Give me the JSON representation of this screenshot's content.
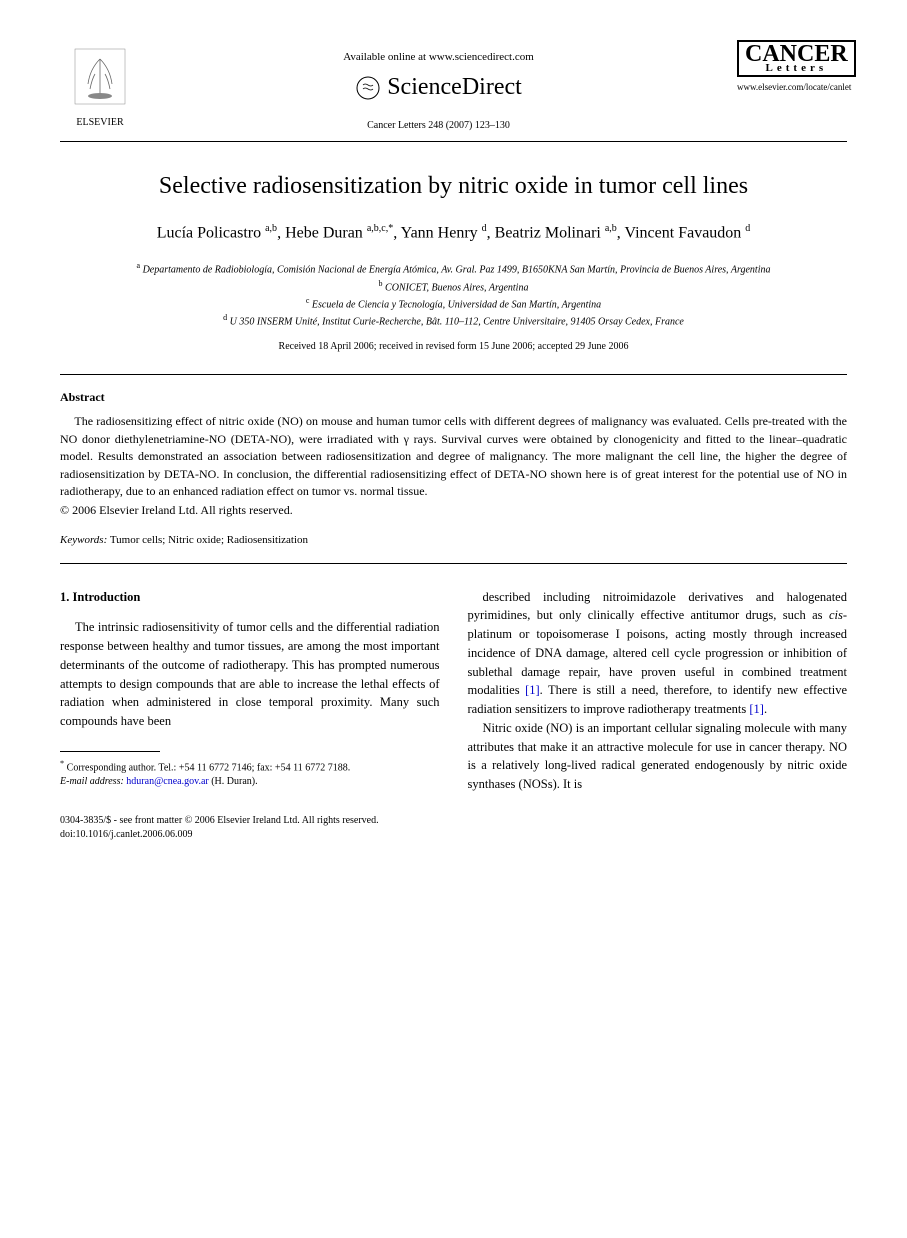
{
  "header": {
    "available_online": "Available online at www.sciencedirect.com",
    "sciencedirect": "ScienceDirect",
    "citation": "Cancer Letters 248 (2007) 123–130",
    "elsevier": "ELSEVIER",
    "cancer": "CANCER",
    "letters": "Letters",
    "journal_url": "www.elsevier.com/locate/canlet"
  },
  "title": "Selective radiosensitization by nitric oxide in tumor cell lines",
  "authors_html": "Lucía Policastro <sup>a,b</sup>, Hebe Duran <sup>a,b,c,*</sup>, Yann Henry <sup>d</sup>, Beatriz Molinari <sup>a,b</sup>, Vincent Favaudon <sup>d</sup>",
  "affiliations": {
    "a": "Departamento de Radiobiología, Comisión Nacional de Energía Atómica, Av. Gral. Paz 1499, B1650KNA San Martín, Provincia de Buenos Aires, Argentina",
    "b": "CONICET, Buenos Aires, Argentina",
    "c": "Escuela de Ciencia y Tecnología, Universidad de San Martín, Argentina",
    "d": "U 350 INSERM Unité, Institut Curie-Recherche, Bât. 110–112, Centre Universitaire, 91405 Orsay Cedex, France"
  },
  "dates": "Received 18 April 2006; received in revised form 15 June 2006; accepted 29 June 2006",
  "abstract": {
    "heading": "Abstract",
    "text": "The radiosensitizing effect of nitric oxide (NO) on mouse and human tumor cells with different degrees of malignancy was evaluated. Cells pre-treated with the NO donor diethylenetriamine-NO (DETA-NO), were irradiated with γ rays. Survival curves were obtained by clonogenicity and fitted to the linear–quadratic model. Results demonstrated an association between radiosensitization and degree of malignancy. The more malignant the cell line, the higher the degree of radiosensitization by DETA-NO. In conclusion, the differential radiosensitizing effect of DETA-NO shown here is of great interest for the potential use of NO in radiotherapy, due to an enhanced radiation effect on tumor vs. normal tissue.",
    "copyright": "© 2006 Elsevier Ireland Ltd. All rights reserved."
  },
  "keywords": {
    "label": "Keywords:",
    "text": "Tumor cells; Nitric oxide; Radiosensitization"
  },
  "intro": {
    "heading": "1. Introduction",
    "p1": "The intrinsic radiosensitivity of tumor cells and the differential radiation response between healthy and tumor tissues, are among the most important determinants of the outcome of radiotherapy. This has prompted numerous attempts to design compounds that are able to increase the lethal effects of radiation when administered in close temporal proximity. Many such compounds have been",
    "p2a": "described including nitroimidazole derivatives and halogenated pyrimidines, but only clinically effective antitumor drugs, such as ",
    "p2_cis": "cis",
    "p2b": "-platinum or topoisomerase I poisons, acting mostly through increased incidence of DNA damage, altered cell cycle progression or inhibition of sublethal damage repair, have proven useful in combined treatment modalities ",
    "ref1": "[1]",
    "p2c": ". There is still a need, therefore, to identify new effective radiation sensitizers to improve radiotherapy treatments ",
    "p2d": ".",
    "p3": "Nitric oxide (NO) is an important cellular signaling molecule with many attributes that make it an attractive molecule for use in cancer therapy. NO is a relatively long-lived radical generated endogenously by nitric oxide synthases (NOSs). It is"
  },
  "footnotes": {
    "corr": "Corresponding author. Tel.: +54 11 6772 7146; fax: +54 11 6772 7188.",
    "email_label": "E-mail address:",
    "email": "hduran@cnea.gov.ar",
    "email_name": "(H. Duran)."
  },
  "footer": {
    "line1": "0304-3835/$ - see front matter © 2006 Elsevier Ireland Ltd. All rights reserved.",
    "line2": "doi:10.1016/j.canlet.2006.06.009"
  }
}
